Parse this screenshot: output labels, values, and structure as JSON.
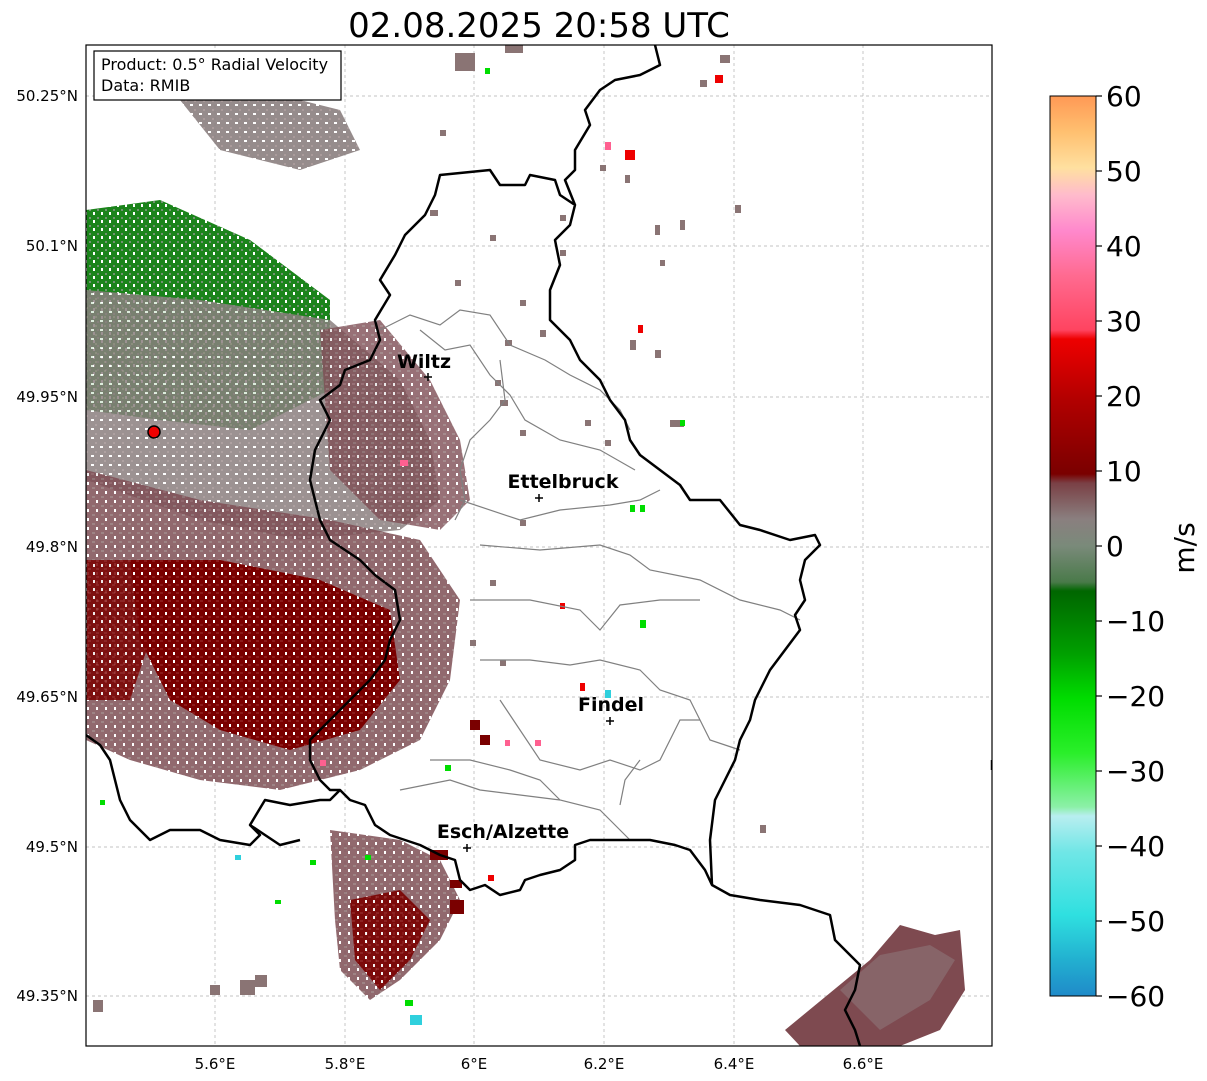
{
  "title": "02.08.2025 20:58 UTC",
  "info_box": {
    "product": "Product: 0.5° Radial Velocity",
    "data_source": "Data: RMIB"
  },
  "axes": {
    "lon_ticks": [
      "5.6°E",
      "5.8°E",
      "6°E",
      "6.2°E",
      "6.4°E",
      "6.6°E"
    ],
    "lat_ticks": [
      "50.25°N",
      "50.1°N",
      "49.95°N",
      "49.8°N",
      "49.65°N",
      "49.5°N",
      "49.35°N"
    ],
    "grid": true
  },
  "cities": [
    {
      "name": "Wiltz",
      "lon": 5.93,
      "lat": 49.97
    },
    {
      "name": "Ettelbruck",
      "lon": 6.1,
      "lat": 49.85
    },
    {
      "name": "Findel",
      "lon": 6.21,
      "lat": 49.63
    },
    {
      "name": "Esch/Alzette",
      "lon": 5.99,
      "lat": 49.5
    }
  ],
  "radar_site": {
    "lon": 5.51,
    "lat": 49.915,
    "marker": "red-dot"
  },
  "colorbar": {
    "label": "m/s",
    "ticks": [
      "60",
      "50",
      "40",
      "30",
      "20",
      "10",
      "0",
      "−10",
      "−20",
      "−30",
      "−40",
      "−50",
      "−60"
    ],
    "min": -60,
    "max": 60,
    "colors": {
      "approaching_strong": "#1f8ac9",
      "approaching_cyan": "#2fe0e0",
      "approaching_light_cyan": "#b8eef0",
      "approaching_light_green": "#8cf0a8",
      "approaching_green": "#00dd00",
      "approaching_dark_green": "#006600",
      "near_zero_green": "#5b8d5b",
      "zero_gray": "#8a8080",
      "receding_brown": "#7a4045",
      "receding_dark_red": "#7a0000",
      "receding_red": "#ee0000",
      "receding_pink": "#ff6090",
      "receding_light_pink": "#ffaacc",
      "receding_yellow": "#ffe090",
      "receding_orange": "#ff9955"
    }
  }
}
